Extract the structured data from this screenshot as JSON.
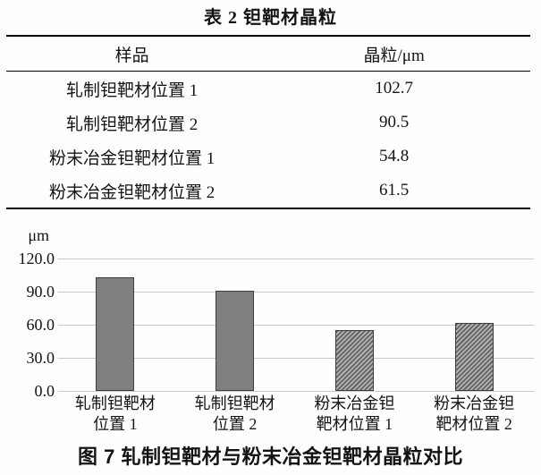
{
  "table": {
    "title": "表 2  钽靶材晶粒",
    "columns": [
      "样品",
      "晶粒/μm"
    ],
    "rows": [
      {
        "sample": "轧制钽靶材位置 1",
        "grain": "102.7"
      },
      {
        "sample": "轧制钽靶材位置 2",
        "grain": "90.5"
      },
      {
        "sample": "粉末冶金钽靶材位置 1",
        "grain": "54.8"
      },
      {
        "sample": "粉末冶金钽靶材位置 2",
        "grain": "61.5"
      }
    ]
  },
  "chart_data": {
    "type": "bar",
    "title": "图 7  轧制钽靶材与粉末冶金钽靶材晶粒对比",
    "categories": [
      [
        "轧制钽靶材",
        "位置 1"
      ],
      [
        "轧制钽靶材",
        "位置 2"
      ],
      [
        "粉末冶金钽",
        "靶材位置 1"
      ],
      [
        "粉末冶金钽",
        "靶材位置 2"
      ]
    ],
    "values": [
      102.7,
      90.5,
      54.8,
      61.5
    ],
    "bar_styles": [
      "solid",
      "solid",
      "hatched",
      "hatched"
    ],
    "ylabel": "μm",
    "xlabel": "",
    "ylim": [
      0,
      120
    ],
    "yticks": [
      0,
      30,
      60,
      90,
      120
    ],
    "ytick_labels": [
      "0.0",
      "30.0",
      "60.0",
      "90.0",
      "120.0"
    ],
    "grid": true,
    "legend": "none",
    "colors": {
      "bar_fill": "#7f7f7f",
      "bar_border": "#3d3d3d",
      "hatch_dark": "#636363",
      "hatch_light": "#b3b3b3",
      "gridline": "#c9c9c9",
      "text": "#141414"
    }
  },
  "figure": {
    "caption": "图 7  轧制钽靶材与粉末冶金钽靶材晶粒对比"
  }
}
